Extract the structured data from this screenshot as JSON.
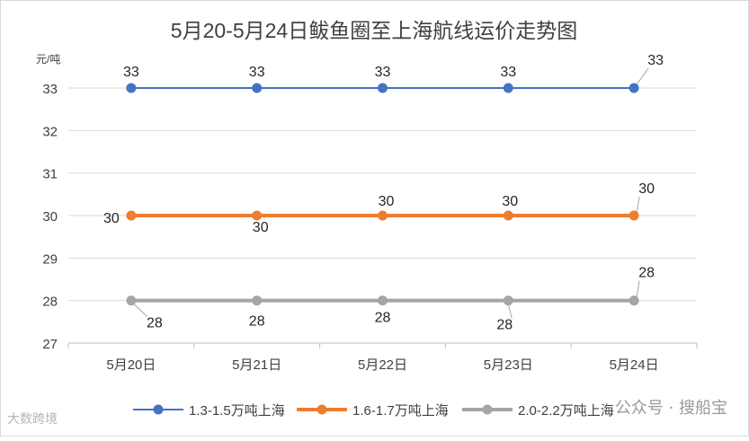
{
  "chart_data": {
    "type": "line",
    "title": "5月20-5月24日鲅鱼圈至上海航线运价走势图",
    "yunit": "元/吨",
    "categories": [
      "5月20日",
      "5月21日",
      "5月22日",
      "5月23日",
      "5月24日"
    ],
    "ylim": [
      27,
      33
    ],
    "yticks": [
      27,
      28,
      29,
      30,
      31,
      32,
      33
    ],
    "grid": true,
    "legend_position": "bottom",
    "series": [
      {
        "name": "1.3-1.5万吨上海",
        "color": "#4472c4",
        "values": [
          33,
          33,
          33,
          33,
          33
        ]
      },
      {
        "name": "1.6-1.7万吨上海",
        "color": "#ed7d31",
        "values": [
          30,
          30,
          30,
          30,
          30
        ]
      },
      {
        "name": "2.0-2.2万吨上海",
        "color": "#a5a5a5",
        "values": [
          28,
          28,
          28,
          28,
          28
        ]
      }
    ]
  },
  "watermark": {
    "left": "大数跨境",
    "right": "公众号 · 搜船宝"
  }
}
